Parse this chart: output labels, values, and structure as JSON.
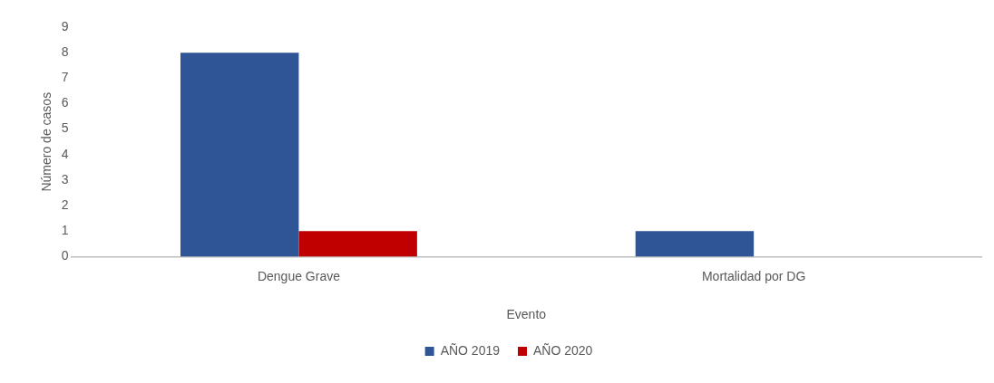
{
  "chart_data": {
    "type": "bar",
    "xlabel": "Evento",
    "ylabel": "Número de casos",
    "categories": [
      "Dengue Grave",
      "Mortalidad por DG"
    ],
    "series": [
      {
        "name": "AÑO 2019",
        "color": "#2f5597",
        "values": [
          8,
          1
        ]
      },
      {
        "name": "AÑO 2020",
        "color": "#c00000",
        "values": [
          1,
          0
        ]
      }
    ],
    "ylim": [
      0,
      9
    ],
    "yticks": [
      0,
      1,
      2,
      3,
      4,
      5,
      6,
      7,
      8,
      9
    ],
    "grid": false,
    "legend": "bottom"
  }
}
